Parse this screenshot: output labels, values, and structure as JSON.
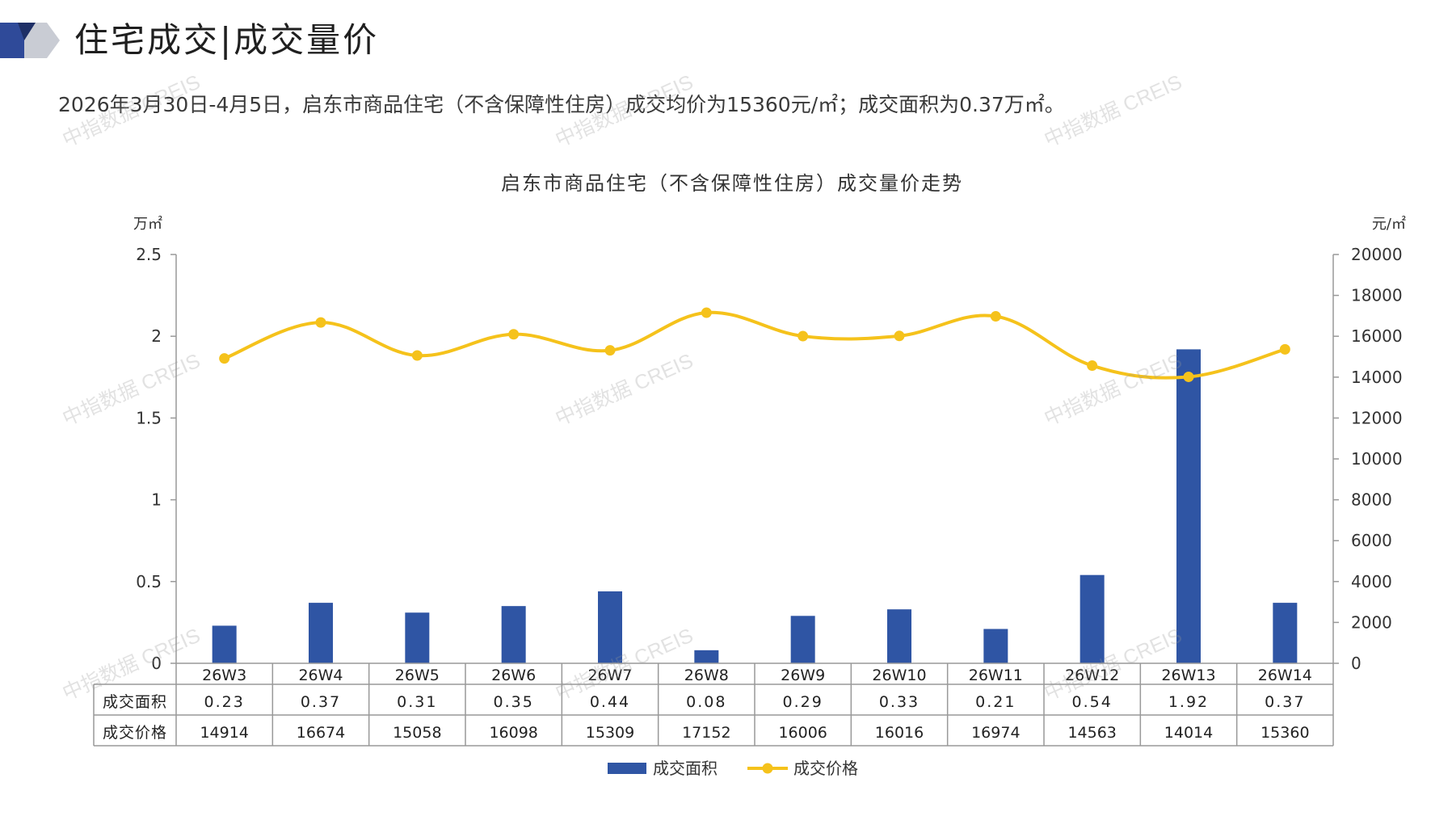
{
  "header": {
    "title": "住宅成交|成交量价"
  },
  "summary": "2026年3月30日-4月5日，启东市商品住宅（不含保障性住房）成交均价为15360元/㎡；成交面积为0.37万㎡。",
  "watermark_text": "中指数据 CREIS",
  "colors": {
    "bar": "#2f55a4",
    "line": "#f5c21b",
    "text": "#333333",
    "axis": "#999999",
    "logo_dark": "#2f4a99",
    "logo_light": "#c9ccd4"
  },
  "chart_data": {
    "type": "bar+line",
    "title": "启东市商品住宅（不含保障性住房）成交量价走势",
    "left_unit": "万㎡",
    "right_unit": "元/㎡",
    "categories": [
      "26W3",
      "26W4",
      "26W5",
      "26W6",
      "26W7",
      "26W8",
      "26W9",
      "26W10",
      "26W11",
      "26W12",
      "26W13",
      "26W14"
    ],
    "series": [
      {
        "name": "成交面积",
        "type": "bar",
        "axis": "left",
        "values": [
          0.23,
          0.37,
          0.31,
          0.35,
          0.44,
          0.08,
          0.29,
          0.33,
          0.21,
          0.54,
          1.92,
          0.37
        ],
        "display": [
          "0.23",
          "0.37",
          "0.31",
          "0.35",
          "0.44",
          "0.08",
          "0.29",
          "0.33",
          "0.21",
          "0.54",
          "1.92",
          "0.37"
        ]
      },
      {
        "name": "成交价格",
        "type": "line",
        "axis": "right",
        "values": [
          14914,
          16674,
          15058,
          16098,
          15309,
          17152,
          16006,
          16016,
          16974,
          14563,
          14014,
          15360
        ],
        "display": [
          "14914",
          "16674",
          "15058",
          "16098",
          "15309",
          "17152",
          "16006",
          "16016",
          "16974",
          "14563",
          "14014",
          "15360"
        ]
      }
    ],
    "left_ylim": [
      0,
      2.5
    ],
    "left_ticks": [
      "0",
      "0.5",
      "1",
      "1.5",
      "2",
      "2.5"
    ],
    "right_ylim": [
      0,
      20000
    ],
    "right_ticks": [
      "0",
      "2000",
      "4000",
      "6000",
      "8000",
      "10000",
      "12000",
      "14000",
      "16000",
      "18000",
      "20000"
    ],
    "table_row_labels": [
      "成交面积",
      "成交价格"
    ],
    "legend": [
      "成交面积",
      "成交价格"
    ],
    "legend_position": "bottom"
  }
}
